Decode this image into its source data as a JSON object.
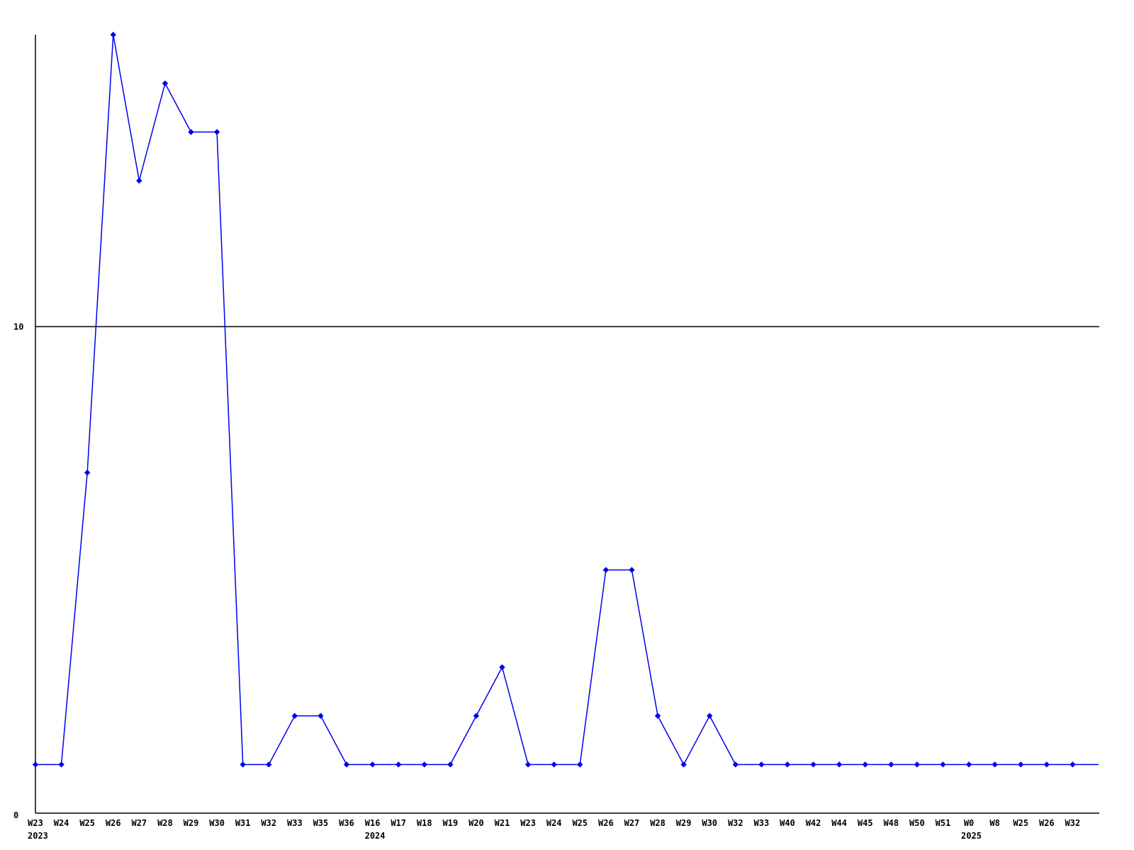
{
  "chart_data": {
    "type": "line",
    "title": "",
    "xlabel": "",
    "ylabel": "",
    "legend": "none",
    "grid": "single horizontal reference line at y=10",
    "categories": [
      "W23",
      "W24",
      "W25",
      "W26",
      "W27",
      "W28",
      "W29",
      "W30",
      "W31",
      "W32",
      "W33",
      "W35",
      "W36",
      "W16",
      "W17",
      "W18",
      "W19",
      "W20",
      "W21",
      "W23",
      "W24",
      "W25",
      "W26",
      "W27",
      "W28",
      "W29",
      "W30",
      "W32",
      "W33",
      "W40",
      "W42",
      "W44",
      "W45",
      "W48",
      "W50",
      "W51",
      "W0",
      "W8",
      "W25",
      "W26",
      "W32"
    ],
    "values": [
      1,
      1,
      7,
      16,
      13,
      15,
      14,
      14,
      1,
      1,
      2,
      2,
      1,
      1,
      1,
      1,
      1,
      2,
      3,
      1,
      1,
      1,
      5,
      5,
      2,
      1,
      2,
      1,
      1,
      1,
      1,
      1,
      1,
      1,
      1,
      1,
      1,
      1,
      1,
      1,
      1
    ],
    "year_markers": [
      {
        "index": 0,
        "year": "2023"
      },
      {
        "index": 13,
        "year": "2024"
      },
      {
        "index": 36,
        "year": "2025"
      }
    ],
    "ylim": [
      0,
      16
    ],
    "yticks": [
      {
        "value": 0,
        "label": "0"
      },
      {
        "value": 10,
        "label": "10"
      }
    ],
    "gridline_value": 10,
    "trailing_segment_value": 1,
    "line_color": "#0000ee",
    "marker_color": "#0000ee",
    "axis_color": "#000000",
    "marker_shape": "diamond"
  }
}
